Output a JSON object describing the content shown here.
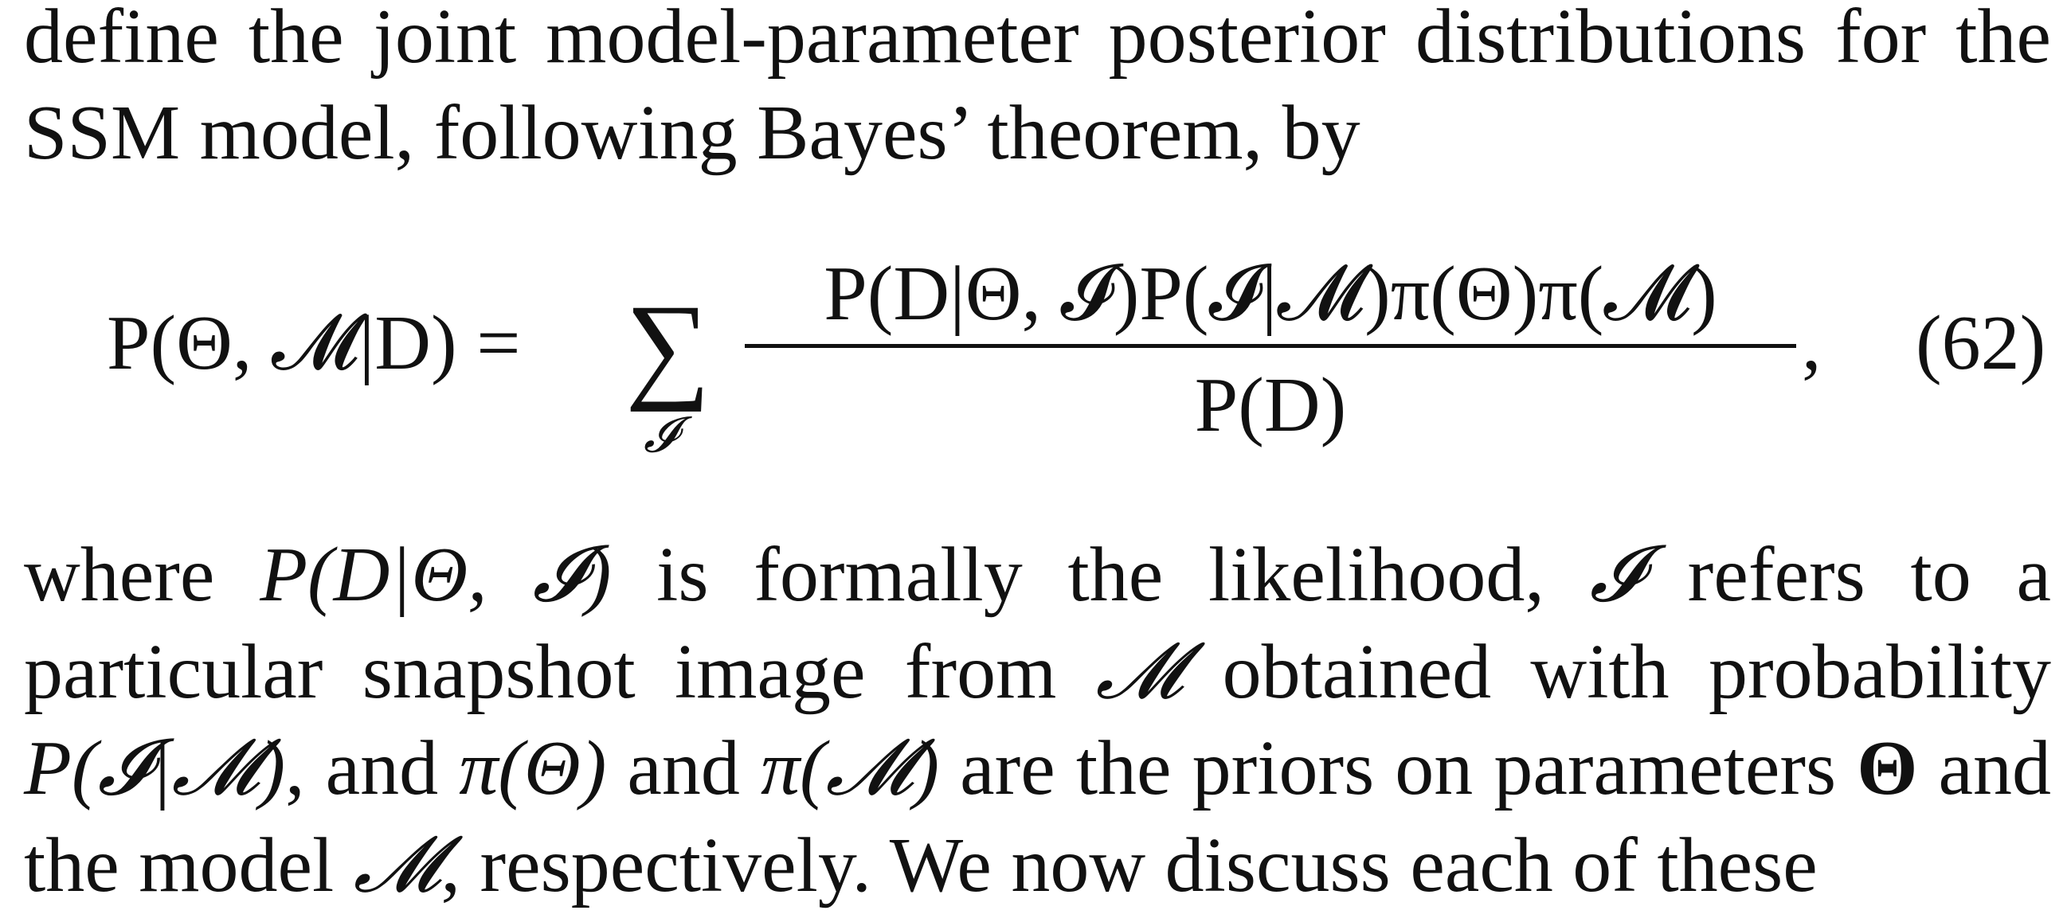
{
  "paragraph_before": "define the joint model-parameter posterior distributions for the SSM model, following Bayes’ theorem, by",
  "equation": {
    "lhs": "P(Θ, 𝓜|D) =",
    "sum_symbol": "∑",
    "sum_subscript": "𝓘",
    "numerator": "P(D|Θ, 𝓘)P(𝓘|𝓜)π(Θ)π(𝓜)",
    "denominator": "P(D)",
    "trailing_punct": ",",
    "number": "(62)"
  },
  "paragraph_after": {
    "s1": "where ",
    "m1": "P(D|Θ, 𝓘)",
    "s2": " is formally the likelihood, ",
    "m2": "𝓘",
    "s3": " refers to a particular snapshot image from ",
    "m3": "𝓜",
    "s4": " obtained with probability ",
    "m4": "P(𝓘|𝓜)",
    "s5": ", and ",
    "m5": "π(Θ)",
    "s6": " and ",
    "m6": "π(𝓜)",
    "s7": " are the priors on parameters ",
    "m7": "Θ",
    "s8": " and the model ",
    "m8": "𝓜",
    "s9": ", respectively. We now discuss each of these"
  }
}
